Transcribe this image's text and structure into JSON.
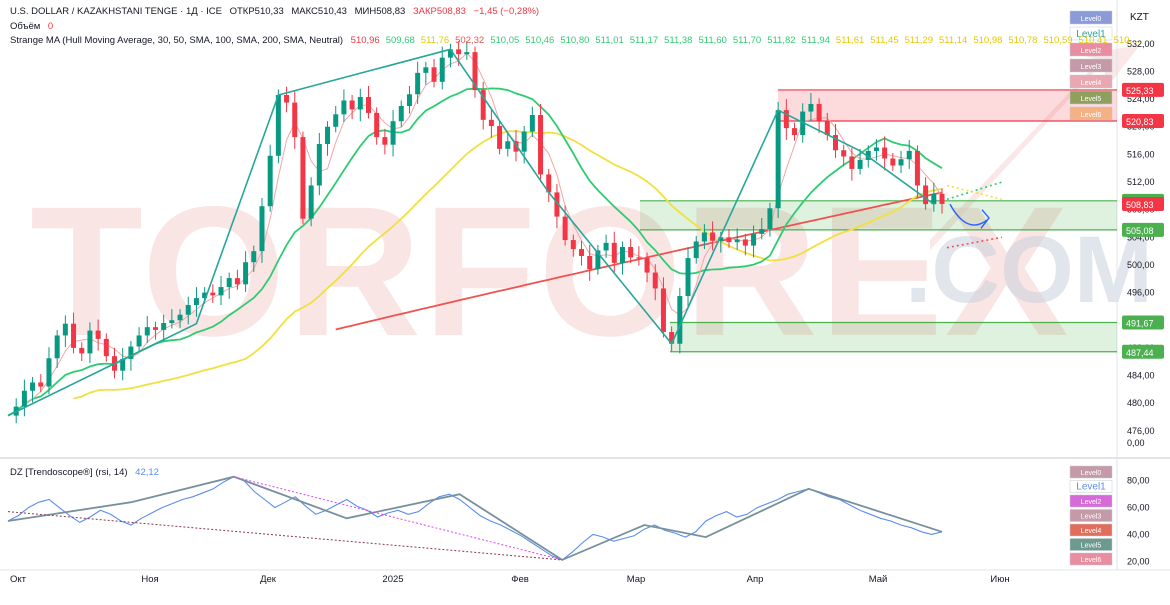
{
  "header": {
    "symbol": "U.S. DOLLAR / KAZAKHSTANI TENGE · 1Д · ICE",
    "open": "ОТКР510,33",
    "high": "МАКС510,43",
    "low": "МИН508,83",
    "close": "ЗАКР508,83",
    "change": "−1,45 (−0,28%)",
    "volume_label": "Объём",
    "volume_value": "0",
    "indicator_label": "Strange MA (Hull Moving Average, 30, 50, SMA, 100, SMA, 200, SMA, Neutral)",
    "indicator_values": [
      "510,96",
      "509,68",
      "511,76",
      "502,32",
      "510,05",
      "510,46",
      "510,80",
      "511,01",
      "511,17",
      "511,38",
      "511,60",
      "511,70",
      "511,82",
      "511,94",
      "511,61",
      "511,45",
      "511,29",
      "511,14",
      "510,98",
      "510,78",
      "510,59",
      "510,41",
      "510,..."
    ],
    "oscillator_label": "DZ [Trendoscope®] (rsi, 14)",
    "oscillator_value": "42,12"
  },
  "currency": "KZT",
  "level_buttons": [
    "Level0",
    "Level1",
    "Level2",
    "Level3",
    "Level4",
    "Level5",
    "Level6"
  ],
  "osc_level_buttons": [
    "Level0",
    "Level1",
    "Level2",
    "Level3",
    "Level4",
    "Level5",
    "Level6"
  ],
  "colors": {
    "up": "#089981",
    "down": "#f23645",
    "hull": "#f4a6a6",
    "sma50": "#2ecc71",
    "sma100": "#f0e040",
    "sma200": "#ef5350",
    "zigzag": "#26a69a",
    "rsi": "#5b8def",
    "osc_zigzag": "#78909c",
    "watermark": "#f6cfcf"
  },
  "watermark": {
    "main": "TORFOREX",
    "sub": ".COM"
  },
  "chart_data": [
    {
      "type": "candlestick",
      "title": "U.S. DOLLAR / KAZAKHSTANI TENGE",
      "x_labels": [
        "Окт",
        "Ноя",
        "Дек",
        "2025",
        "Фев",
        "Мар",
        "Апр",
        "Май",
        "Июн"
      ],
      "y_ticks": [
        476,
        480,
        484,
        488,
        492,
        496,
        500,
        504,
        508,
        512,
        516,
        520,
        524,
        528,
        532
      ],
      "y_range": [
        472.5,
        534
      ],
      "series": [
        {
          "name": "Strange MA",
          "values_close": [
            478.2,
            479.5,
            481.8,
            483.0,
            482.4,
            486.5,
            489.8,
            491.5,
            488.0,
            487.2,
            490.5,
            489.3,
            486.8,
            484.7,
            486.4,
            488.2,
            489.8,
            491.0,
            490.6,
            491.6,
            492.0,
            492.8,
            494.2,
            495.2,
            496.0,
            495.6,
            496.8,
            498.1,
            497.2,
            500.4,
            502.0,
            508.5,
            515.8,
            524.6,
            523.5,
            518.5,
            506.7,
            511.5,
            517.5,
            520.0,
            521.8,
            523.8,
            522.5,
            524.3,
            522.0,
            518.5,
            517.4,
            520.8,
            523.0,
            524.7,
            527.8,
            528.6,
            526.5,
            530.0,
            531.2,
            530.5,
            530.8,
            525.3,
            521.0,
            520.1,
            516.8,
            517.9,
            516.4,
            519.3,
            521.7,
            513.1,
            510.5,
            507.0,
            503.6,
            502.3,
            501.3,
            499.4,
            502.1,
            503.2,
            500.3,
            502.6,
            501.1,
            501.0,
            498.9,
            496.6,
            490.3,
            488.6,
            495.5,
            501.0,
            503.4,
            504.7,
            503.5,
            504.0,
            503.3,
            503.7,
            502.8,
            504.5,
            505.2,
            508.2,
            522.4,
            519.8,
            518.8,
            522.2,
            523.3,
            520.8,
            518.8,
            516.6,
            515.7,
            513.9,
            515.2,
            516.5,
            517.0,
            515.4,
            514.4,
            515.3,
            516.5,
            511.5,
            508.8,
            510.3,
            508.83
          ]
        }
      ],
      "horizontal_levels": [
        {
          "value": 525.33,
          "label": "525,33"
        },
        {
          "value": 520.83,
          "label": "520,83"
        },
        {
          "value": 509.28,
          "label": "509,28"
        },
        {
          "value": 508.83,
          "label": "508,83"
        },
        {
          "value": 505.08,
          "label": "505,08"
        },
        {
          "value": 491.67,
          "label": "491,67"
        },
        {
          "value": 487.44,
          "label": "487,44"
        }
      ],
      "extra_axis_label": "0,00"
    },
    {
      "type": "line",
      "title": "DZ [Trendoscope®] (rsi, 14)",
      "y_ticks": [
        20,
        40,
        60,
        80
      ],
      "y_range": [
        15,
        88
      ],
      "series": [
        {
          "name": "rsi",
          "values": [
            50,
            54,
            60,
            64,
            66,
            60,
            54,
            49,
            53,
            58,
            55,
            50,
            47,
            52,
            56,
            60,
            63,
            66,
            68,
            71,
            74,
            79,
            83,
            80,
            72,
            66,
            60,
            64,
            68,
            61,
            55,
            58,
            62,
            66,
            61,
            58,
            53,
            56,
            58,
            55,
            57,
            63,
            68,
            70,
            66,
            60,
            54,
            50,
            47,
            43,
            39,
            34,
            29,
            24,
            21,
            27,
            34,
            40,
            38,
            35,
            37,
            39,
            44,
            47,
            43,
            41,
            38,
            42,
            50,
            54,
            57,
            53,
            55,
            60,
            63,
            66,
            70,
            72,
            74,
            71,
            68,
            66,
            62,
            58,
            55,
            52,
            50,
            47,
            45,
            42,
            40,
            42
          ]
        }
      ]
    }
  ]
}
